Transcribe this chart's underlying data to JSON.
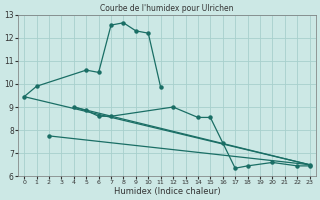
{
  "title": "Courbe de l'humidex pour Ulrichen",
  "xlabel": "Humidex (Indice chaleur)",
  "xlim": [
    -0.5,
    23.5
  ],
  "ylim": [
    6,
    13
  ],
  "yticks": [
    6,
    7,
    8,
    9,
    10,
    11,
    12,
    13
  ],
  "xticks": [
    0,
    1,
    2,
    3,
    4,
    5,
    6,
    7,
    8,
    9,
    10,
    11,
    12,
    13,
    14,
    15,
    16,
    17,
    18,
    19,
    20,
    21,
    22,
    23
  ],
  "background_color": "#cce8e5",
  "grid_color": "#a8d0cc",
  "line_color": "#1a6e65",
  "line1_x": [
    0,
    1,
    5,
    6,
    7,
    8,
    9,
    10,
    11
  ],
  "line1_y": [
    9.45,
    9.9,
    10.6,
    10.5,
    12.55,
    12.65,
    12.3,
    12.2,
    9.85
  ],
  "line2_x": [
    4,
    5,
    6,
    7,
    12,
    14,
    15,
    16,
    17,
    18,
    20,
    22,
    23
  ],
  "line2_y": [
    9.0,
    8.85,
    8.6,
    8.6,
    9.0,
    8.55,
    8.55,
    7.45,
    6.35,
    6.45,
    6.6,
    6.45,
    6.45
  ],
  "line3_x": [
    2,
    23
  ],
  "line3_y": [
    7.75,
    6.5
  ],
  "line4_x": [
    0,
    23
  ],
  "line4_y": [
    9.45,
    6.5
  ],
  "line5_x": [
    4,
    23
  ],
  "line5_y": [
    9.0,
    6.5
  ]
}
